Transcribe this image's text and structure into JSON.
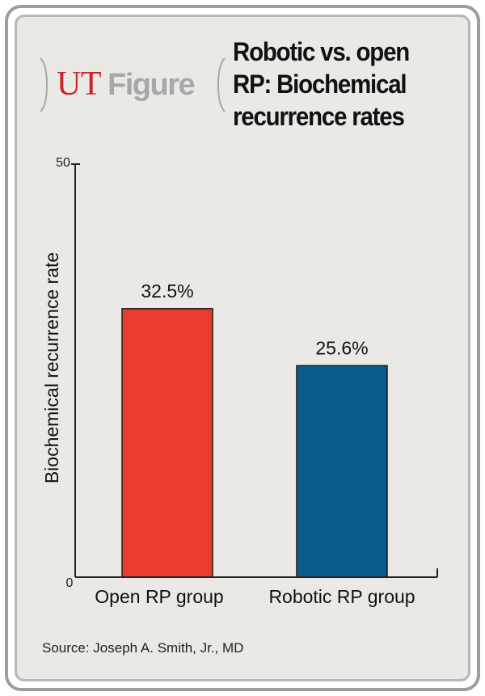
{
  "brand": {
    "ut": "UT",
    "figure": "Figure"
  },
  "title_lines": [
    "Robotic vs. open",
    "RP: Biochemical",
    "recurrence rates"
  ],
  "source": "Source: Joseph A. Smith, Jr., MD",
  "colors": {
    "open": "#ea3b31",
    "robotic": "#0a5c8f",
    "brand_red": "#c8242b",
    "brand_gray": "#a8a8a8"
  },
  "chart_data": {
    "type": "bar",
    "title": "Robotic vs. open RP: Biochemical recurrence rates",
    "categories": [
      "Open RP group",
      "Robotic RP group"
    ],
    "values": [
      32.5,
      25.6
    ],
    "data_labels": [
      "32.5%",
      "25.6%"
    ],
    "ylabel": "Biochemical recurrence rate",
    "xlabel": "",
    "ylim": [
      0,
      50
    ],
    "yticks": [
      "0",
      "50"
    ],
    "grid": false,
    "legend": "none"
  }
}
